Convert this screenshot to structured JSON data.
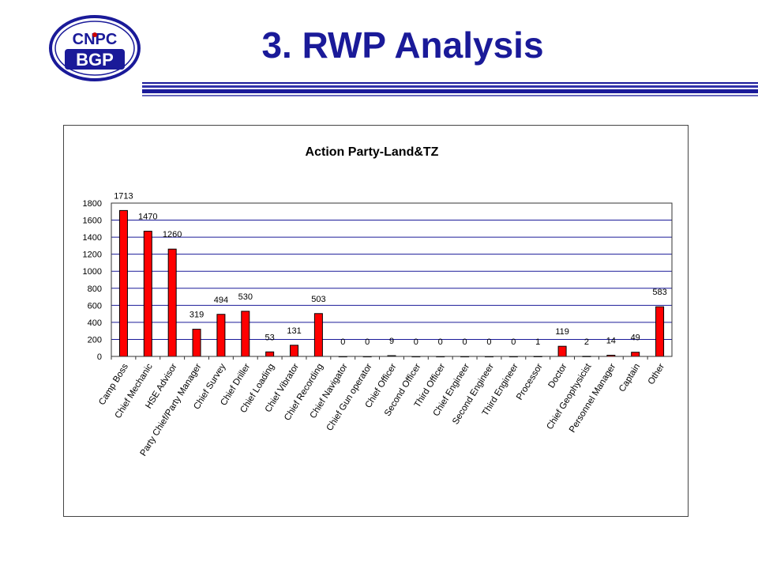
{
  "slide": {
    "title": "3. RWP Analysis",
    "logo": {
      "top_text": "CNPC",
      "bottom_text": "BGP"
    }
  },
  "colors": {
    "title": "#1a1a99",
    "bar": "#ff0000",
    "grid": "#1a1a99"
  },
  "chart_data": {
    "type": "bar",
    "title": "Action Party-Land&TZ",
    "xlabel": "",
    "ylabel": "",
    "ylim": [
      0,
      1800
    ],
    "yticks": [
      0,
      200,
      400,
      600,
      800,
      1000,
      1200,
      1400,
      1600,
      1800
    ],
    "grid": true,
    "legend": "none",
    "categories": [
      "Camp Boss",
      "Chief Mechanic",
      "HSE Advisor",
      "Party Chief/Party Manager",
      "Chief Survey",
      "Chief Driller",
      "Chief Loading",
      "Chief Vibrator",
      "Chief Recording",
      "Chief Navigator",
      "Chief Gun operator",
      "Chief Officer",
      "Second Officer",
      "Third Officer",
      "Chief Engineer",
      "Second Engineer",
      "Third Engineer",
      "Processor",
      "Doctor",
      "Chief Geophysicist",
      "Personnel Manager",
      "Captain",
      "Other"
    ],
    "values": [
      1713,
      1470,
      1260,
      319,
      494,
      530,
      53,
      131,
      503,
      0,
      0,
      9,
      0,
      0,
      0,
      0,
      0,
      1,
      119,
      2,
      14,
      49,
      583
    ]
  }
}
